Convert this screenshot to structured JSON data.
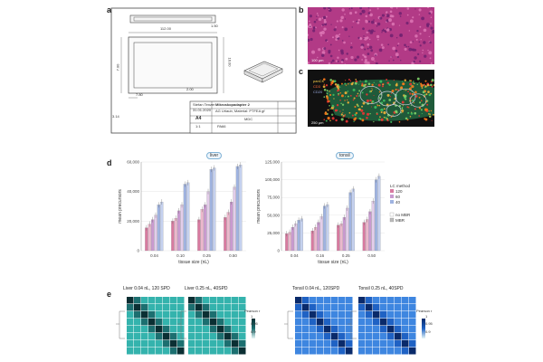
{
  "panels": {
    "a": "a",
    "b": "b",
    "c": "c",
    "d": "d",
    "e": "e"
  },
  "drawing": {
    "dims": {
      "w": "112.00",
      "h": "16.00",
      "d1": "7.80",
      "d2": "7.00",
      "d3": "3.14",
      "d4": "2.00",
      "top": "1.50"
    },
    "title_block": {
      "title": "Mikroskopadapter 2",
      "sub": "AG Urlaub, Material: PTFEA gf",
      "name": "Stefan Tenzer",
      "date": "31.01.2020",
      "size": "A4",
      "tag": "MDC",
      "sheet": "1:1",
      "code": "PA66"
    }
  },
  "micro_b": {
    "scale": "100 µm"
  },
  "micro_c": {
    "scale": "250 µm",
    "legend": [
      "panCK",
      "CD3",
      "CD20"
    ]
  },
  "chart_data": [
    {
      "type": "bar",
      "facet": "liver",
      "title": "",
      "xlabel": "tissue size (nL)",
      "ylabel": "mean precursors",
      "categories": [
        "0.04",
        "0.10",
        "0.25",
        "0.50"
      ],
      "ylim": [
        0,
        60000
      ],
      "yticks": [
        "0",
        "20,000",
        "40,000",
        "60,000"
      ],
      "series": [
        {
          "name": "120",
          "color": "#d87aa0",
          "values": [
            15500,
            20000,
            21000,
            22500
          ]
        },
        {
          "name": "60",
          "color": "#c99ad0",
          "values": [
            21000,
            27000,
            31000,
            33000
          ]
        },
        {
          "name": "40",
          "color": "#9fb3e0",
          "values": [
            31000,
            45000,
            55000,
            57000
          ]
        },
        {
          "name": "120 MBR",
          "color": "#ecb7cc",
          "values": [
            18000,
            22000,
            28000,
            26000
          ]
        },
        {
          "name": "60 MBR",
          "color": "#e3cdea",
          "values": [
            24000,
            31000,
            40000,
            43000
          ]
        },
        {
          "name": "40 MBR",
          "color": "#c5d1ef",
          "values": [
            33000,
            46000,
            56000,
            58000
          ]
        }
      ]
    },
    {
      "type": "bar",
      "facet": "tonsil",
      "title": "",
      "xlabel": "tissue size (nL)",
      "ylabel": "mean precursors",
      "categories": [
        "0.04",
        "0.16",
        "0.25",
        "0.50"
      ],
      "ylim": [
        0,
        125000
      ],
      "yticks": [
        "0",
        "25,000",
        "50,000",
        "75,000",
        "100,000",
        "125,000"
      ],
      "series": [
        {
          "name": "120",
          "color": "#d87aa0",
          "values": [
            24000,
            28000,
            36000,
            40000
          ]
        },
        {
          "name": "60",
          "color": "#c99ad0",
          "values": [
            33000,
            40000,
            47000,
            55000
          ]
        },
        {
          "name": "40",
          "color": "#9fb3e0",
          "values": [
            43000,
            63000,
            82000,
            100000
          ]
        },
        {
          "name": "120 MBR",
          "color": "#ecb7cc",
          "values": [
            26000,
            33000,
            38000,
            44000
          ]
        },
        {
          "name": "60 MBR",
          "color": "#e3cdea",
          "values": [
            38000,
            48000,
            60000,
            70000
          ]
        },
        {
          "name": "40 MBR",
          "color": "#c5d1ef",
          "values": [
            45000,
            65000,
            87000,
            105000
          ]
        }
      ],
      "legend": {
        "title": "LC method",
        "items": [
          "120",
          "60",
          "40"
        ],
        "mbr_title": "",
        "mbr_items": [
          "no MBR",
          "MBR"
        ]
      }
    }
  ],
  "heatmaps": [
    {
      "title": "Liver 0.04 nL, 120 SPD",
      "palette": "teal"
    },
    {
      "title": "Liver 0.25 nL, 40SPD",
      "palette": "teal",
      "colorbar": {
        "title": "Pearson r",
        "ticks": [
          "1",
          "0.95",
          "0.9"
        ]
      }
    },
    {
      "title": "Tonsil 0.04 nL, 120SPD",
      "palette": "blue"
    },
    {
      "title": "Tonsil 0.25 nL, 40SPD",
      "palette": "blue",
      "colorbar": {
        "title": "Pearson r",
        "ticks": [
          "1",
          "0.95",
          "0.9"
        ]
      }
    }
  ]
}
